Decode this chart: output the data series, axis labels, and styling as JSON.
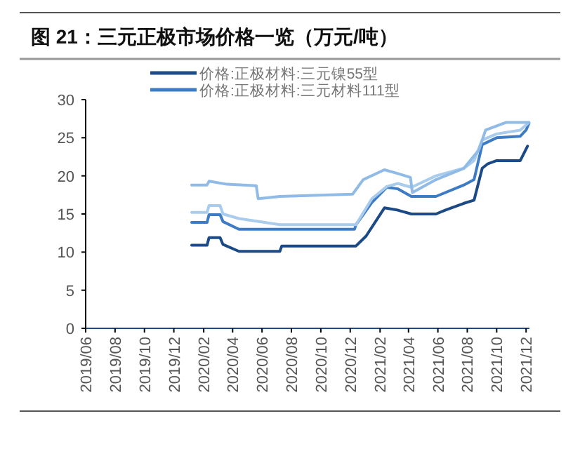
{
  "chart_data": {
    "type": "line",
    "title": "图 21：三元正极市场价格一览（万元/吨）",
    "series": [
      {
        "name": "价格:正极材料:三元镍55型",
        "color": "#1b4a86",
        "x": [
          "2020-01-07",
          "2020-02-08",
          "2020-02-12",
          "2020-03-06",
          "2020-03-12",
          "2020-04-14",
          "2020-07-08",
          "2020-07-12",
          "2020-12-13",
          "2021-01-03",
          "2021-02-10",
          "2021-03-10",
          "2021-04-07",
          "2021-05-28",
          "2021-06-16",
          "2021-07-25",
          "2021-08-15",
          "2021-09-01",
          "2021-09-13",
          "2021-10-01",
          "2021-11-19",
          "2021-12-04"
        ],
        "values": [
          10.9,
          10.9,
          11.9,
          11.9,
          11.0,
          10.1,
          10.1,
          10.8,
          10.8,
          12.1,
          15.8,
          15.5,
          15.0,
          15.0,
          15.5,
          16.4,
          16.8,
          21.0,
          21.6,
          22.0,
          22.0,
          23.9
        ]
      },
      {
        "name": "价格:正极材料:三元材料111型",
        "color": "#3d7cc4",
        "x": [
          "2020-01-07",
          "2020-02-08",
          "2020-02-12",
          "2020-03-06",
          "2020-03-12",
          "2020-04-14",
          "2020-12-10",
          "2020-12-13",
          "2021-01-15",
          "2021-02-15",
          "2021-03-10",
          "2021-04-07",
          "2021-05-28",
          "2021-07-25",
          "2021-08-15",
          "2021-09-01",
          "2021-10-01",
          "2021-11-19",
          "2021-12-01",
          "2021-12-07"
        ],
        "values": [
          13.9,
          13.9,
          14.9,
          14.9,
          14.0,
          13.0,
          13.0,
          13.6,
          16.5,
          18.5,
          18.3,
          17.3,
          17.3,
          18.8,
          19.5,
          24.1,
          25.0,
          25.2,
          26.0,
          26.9
        ]
      },
      {
        "color": "#a9cbec",
        "x": [
          "2020-01-07",
          "2020-02-08",
          "2020-02-12",
          "2020-03-06",
          "2020-03-12",
          "2020-04-14",
          "2020-07-08",
          "2020-12-13",
          "2021-01-15",
          "2021-02-15",
          "2021-03-10",
          "2021-04-07",
          "2021-05-28",
          "2021-07-25",
          "2021-08-15",
          "2021-09-01",
          "2021-10-01",
          "2021-11-19",
          "2021-12-07"
        ],
        "values": [
          15.2,
          15.2,
          16.1,
          16.1,
          15.0,
          14.4,
          13.6,
          13.6,
          17.0,
          18.6,
          19.0,
          18.5,
          20.0,
          21.0,
          22.0,
          24.7,
          25.5,
          26.0,
          27.0
        ]
      },
      {
        "color": "#8fbbe6",
        "x": [
          "2020-01-07",
          "2020-02-08",
          "2020-02-12",
          "2020-03-20",
          "2020-05-20",
          "2020-05-24",
          "2020-07-08",
          "2020-12-06",
          "2020-12-28",
          "2021-02-10",
          "2021-03-10",
          "2021-04-05",
          "2021-04-09",
          "2021-05-28",
          "2021-07-25",
          "2021-08-25",
          "2021-09-08",
          "2021-10-20",
          "2021-12-07"
        ],
        "values": [
          18.8,
          18.8,
          19.3,
          18.9,
          18.7,
          17.0,
          17.3,
          17.6,
          19.5,
          20.8,
          20.3,
          19.8,
          17.8,
          19.5,
          21.0,
          23.4,
          26.0,
          27.0,
          27.0
        ]
      }
    ],
    "xlim": [
      "2019-06",
      "2021-12-08"
    ],
    "xticks": [
      {
        "value": "2019-06",
        "label": "2019/06"
      },
      {
        "value": "2019-08",
        "label": "2019/08"
      },
      {
        "value": "2019-10",
        "label": "2019/10"
      },
      {
        "value": "2019-12",
        "label": "2019/12"
      },
      {
        "value": "2020-02",
        "label": "2020/02"
      },
      {
        "value": "2020-04",
        "label": "2020/04"
      },
      {
        "value": "2020-06",
        "label": "2020/06"
      },
      {
        "value": "2020-08",
        "label": "2020/08"
      },
      {
        "value": "2020-10",
        "label": "2020/10"
      },
      {
        "value": "2020-12",
        "label": "2020/12"
      },
      {
        "value": "2021-02",
        "label": "2021/02"
      },
      {
        "value": "2021-04",
        "label": "2021/04"
      },
      {
        "value": "2021-06",
        "label": "2021/06"
      },
      {
        "value": "2021-08",
        "label": "2021/08"
      },
      {
        "value": "2021-10",
        "label": "2021/10"
      },
      {
        "value": "2021-12",
        "label": "2021/12"
      }
    ],
    "ylim": [
      0,
      30
    ],
    "yticks": [
      0,
      5,
      10,
      15,
      20,
      25,
      30
    ],
    "grid": false,
    "legend": "top",
    "marker": "none",
    "line_style": "solid"
  }
}
